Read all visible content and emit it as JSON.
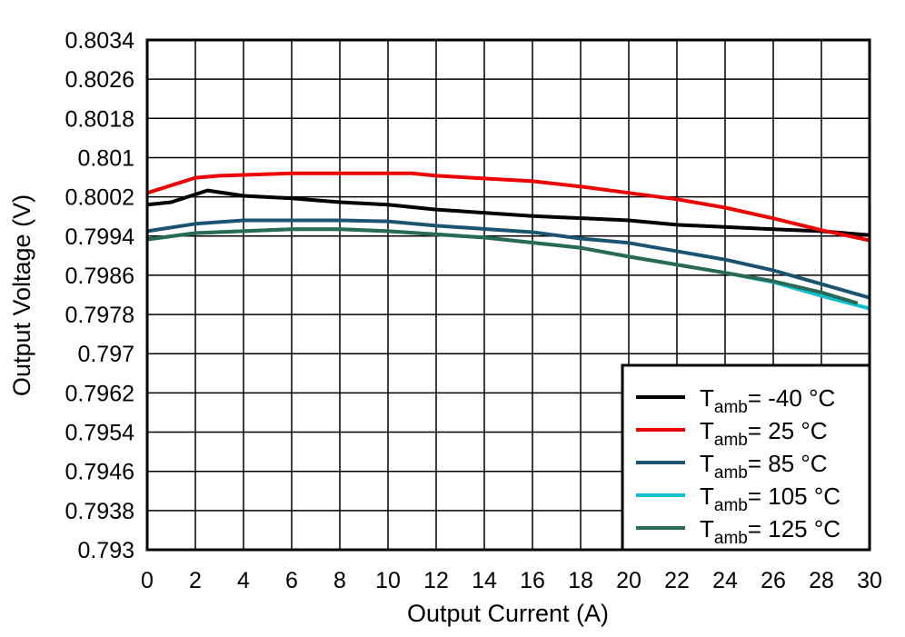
{
  "chart_data": {
    "type": "line",
    "xlabel": "Output Current (A)",
    "ylabel": "Output Voltage (V)",
    "xlim": [
      0,
      30
    ],
    "ylim": [
      0.793,
      0.8034
    ],
    "xticks": [
      "0",
      "2",
      "4",
      "6",
      "8",
      "10",
      "12",
      "14",
      "16",
      "18",
      "20",
      "22",
      "24",
      "26",
      "28",
      "30"
    ],
    "yticks": [
      "0.793",
      "0.7938",
      "0.7946",
      "0.7954",
      "0.7962",
      "0.797",
      "0.7978",
      "0.7986",
      "0.7994",
      "0.8002",
      "0.801",
      "0.8018",
      "0.8026",
      "0.8034"
    ],
    "grid": true,
    "legend_position": "bottom-right",
    "series": [
      {
        "name": "T",
        "sub": "amb",
        "suffix": "= -40 °C",
        "color": "#000000",
        "x": [
          0,
          1,
          2.5,
          4,
          6,
          8,
          10,
          12,
          16,
          20,
          22,
          26,
          28,
          30
        ],
        "y": [
          0.80004,
          0.80009,
          0.80033,
          0.80022,
          0.80017,
          0.80009,
          0.80004,
          0.79994,
          0.79981,
          0.79972,
          0.79963,
          0.79954,
          0.7995,
          0.79942
        ]
      },
      {
        "name": "T",
        "sub": "amb",
        "suffix": "= 25 °C",
        "color": "#EE0000",
        "x": [
          0,
          2,
          3,
          6,
          11,
          12,
          16,
          18,
          20,
          22,
          24,
          26,
          28,
          30
        ],
        "y": [
          0.80028,
          0.80059,
          0.80063,
          0.80068,
          0.80068,
          0.80063,
          0.80052,
          0.80041,
          0.80028,
          0.80015,
          0.79998,
          0.79976,
          0.79952,
          0.79931
        ]
      },
      {
        "name": "T",
        "sub": "amb",
        "suffix": "= 85 °C",
        "color": "#1A5470",
        "x": [
          0,
          2,
          4,
          8,
          10,
          12,
          16,
          18,
          20,
          24,
          26,
          28,
          30
        ],
        "y": [
          0.7995,
          0.79965,
          0.79972,
          0.79972,
          0.7997,
          0.79961,
          0.79948,
          0.79935,
          0.79926,
          0.79892,
          0.7987,
          0.79842,
          0.79814
        ]
      },
      {
        "name": "T",
        "sub": "amb",
        "suffix": "= 105 °C",
        "color": "#10C0D0",
        "x": [
          0,
          2,
          6,
          8,
          10,
          14,
          18,
          20,
          24,
          26,
          28,
          30
        ],
        "y": [
          0.79933,
          0.79946,
          0.79954,
          0.79954,
          0.7995,
          0.79937,
          0.79916,
          0.79898,
          0.79865,
          0.79846,
          0.79818,
          0.79792
        ]
      },
      {
        "name": "T",
        "sub": "amb",
        "suffix": "= 125 °C",
        "color": "#2A6A55",
        "x": [
          0,
          2,
          6,
          8,
          10,
          14,
          18,
          20,
          24,
          26,
          28,
          29.5
        ],
        "y": [
          0.79933,
          0.79946,
          0.79954,
          0.79954,
          0.7995,
          0.79937,
          0.79916,
          0.79898,
          0.79865,
          0.79848,
          0.79825,
          0.79803
        ]
      }
    ]
  }
}
